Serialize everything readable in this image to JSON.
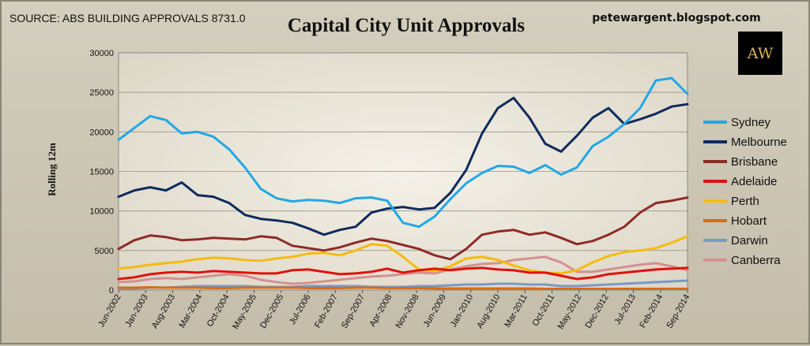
{
  "chart_data": {
    "type": "line",
    "title": "Capital City Unit Approvals",
    "source": "SOURCE: ABS BUILDING APPROVALS 8731.0",
    "blog": "petewargent.blogspot.com",
    "logo": "AW",
    "ylabel": "Rolling 12m",
    "xlabel": "",
    "ylim": [
      0,
      30000
    ],
    "yticks": [
      "0",
      "5000",
      "10000",
      "15000",
      "20000",
      "25000",
      "30000"
    ],
    "xticks": [
      "Jun-2002",
      "Jan-2003",
      "Aug-2003",
      "Mar-2004",
      "Oct-2004",
      "May-2005",
      "Dec-2005",
      "Jul-2006",
      "Feb-2007",
      "Sep-2007",
      "Apr-2008",
      "Nov-2008",
      "Jun-2009",
      "Jan-2010",
      "Aug-2010",
      "Mar-2011",
      "Oct-2011",
      "May-2012",
      "Dec-2012",
      "Jul-2013",
      "Feb-2014",
      "Sep-2014"
    ],
    "legend_position": "right",
    "grid": true,
    "series": [
      {
        "name": "Sydney",
        "color": "#21a8e6",
        "values": [
          19000,
          20500,
          22000,
          21500,
          19800,
          20000,
          19400,
          17800,
          15500,
          12800,
          11600,
          11200,
          11400,
          11300,
          11000,
          11600,
          11700,
          11300,
          8500,
          8000,
          9300,
          11500,
          13500,
          14800,
          15700,
          15600,
          14800,
          15800,
          14600,
          15500,
          18200,
          19400,
          21000,
          23000,
          26500,
          26800,
          24800
        ]
      },
      {
        "name": "Melbourne",
        "color": "#0f2a5c",
        "values": [
          11800,
          12600,
          13000,
          12600,
          13600,
          12000,
          11800,
          11000,
          9500,
          9000,
          8800,
          8500,
          7800,
          7000,
          7600,
          8000,
          9800,
          10300,
          10500,
          10200,
          10400,
          12300,
          15200,
          19800,
          23000,
          24300,
          21800,
          18500,
          17500,
          19500,
          21800,
          23000,
          21000,
          21600,
          22300,
          23200,
          23500
        ]
      },
      {
        "name": "Brisbane",
        "color": "#8e2a26",
        "values": [
          5200,
          6300,
          6900,
          6700,
          6300,
          6400,
          6600,
          6500,
          6400,
          6800,
          6600,
          5600,
          5300,
          5000,
          5400,
          6000,
          6500,
          6200,
          5700,
          5200,
          4400,
          3900,
          5200,
          7000,
          7400,
          7600,
          7000,
          7300,
          6600,
          5800,
          6200,
          7000,
          8000,
          9800,
          11000,
          11300,
          11700
        ]
      },
      {
        "name": "Adelaide",
        "color": "#e0120e",
        "values": [
          1400,
          1600,
          2000,
          2200,
          2300,
          2200,
          2400,
          2300,
          2200,
          2100,
          2100,
          2500,
          2600,
          2300,
          2000,
          2100,
          2300,
          2700,
          2200,
          2500,
          2700,
          2500,
          2700,
          2800,
          2600,
          2500,
          2200,
          2200,
          1800,
          1400,
          1600,
          2000,
          2200,
          2400,
          2600,
          2700,
          2800
        ]
      },
      {
        "name": "Perth",
        "color": "#f6bb0c",
        "values": [
          2700,
          2900,
          3200,
          3400,
          3600,
          3900,
          4100,
          4000,
          3800,
          3700,
          4000,
          4200,
          4600,
          4700,
          4400,
          5000,
          5800,
          5600,
          4200,
          2600,
          2400,
          3000,
          4000,
          4200,
          3800,
          3100,
          2500,
          2200,
          2100,
          2500,
          3500,
          4300,
          4800,
          5000,
          5300,
          6000,
          6800
        ]
      },
      {
        "name": "Hobart",
        "color": "#d76e12",
        "values": [
          300,
          300,
          350,
          300,
          300,
          300,
          250,
          250,
          300,
          300,
          300,
          300,
          250,
          250,
          250,
          300,
          300,
          250,
          250,
          250,
          200,
          200,
          200,
          200,
          200,
          200,
          200,
          150,
          150,
          150,
          150,
          150,
          150,
          150,
          150,
          150,
          150
        ]
      },
      {
        "name": "Darwin",
        "color": "#7b98c8",
        "values": [
          200,
          200,
          300,
          300,
          400,
          500,
          500,
          500,
          500,
          400,
          400,
          400,
          500,
          500,
          500,
          500,
          400,
          400,
          400,
          500,
          500,
          600,
          700,
          700,
          800,
          800,
          700,
          700,
          500,
          500,
          600,
          700,
          800,
          900,
          1000,
          1100,
          1200
        ]
      },
      {
        "name": "Canberra",
        "color": "#d49090",
        "values": [
          1000,
          1100,
          1400,
          1500,
          1400,
          1600,
          1800,
          2000,
          1800,
          1300,
          1000,
          800,
          900,
          1100,
          1300,
          1500,
          1700,
          1800,
          2000,
          2200,
          2100,
          2600,
          3000,
          3300,
          3400,
          3800,
          4000,
          4200,
          3500,
          2300,
          2300,
          2600,
          2900,
          3200,
          3400,
          3000,
          2500
        ]
      }
    ]
  }
}
